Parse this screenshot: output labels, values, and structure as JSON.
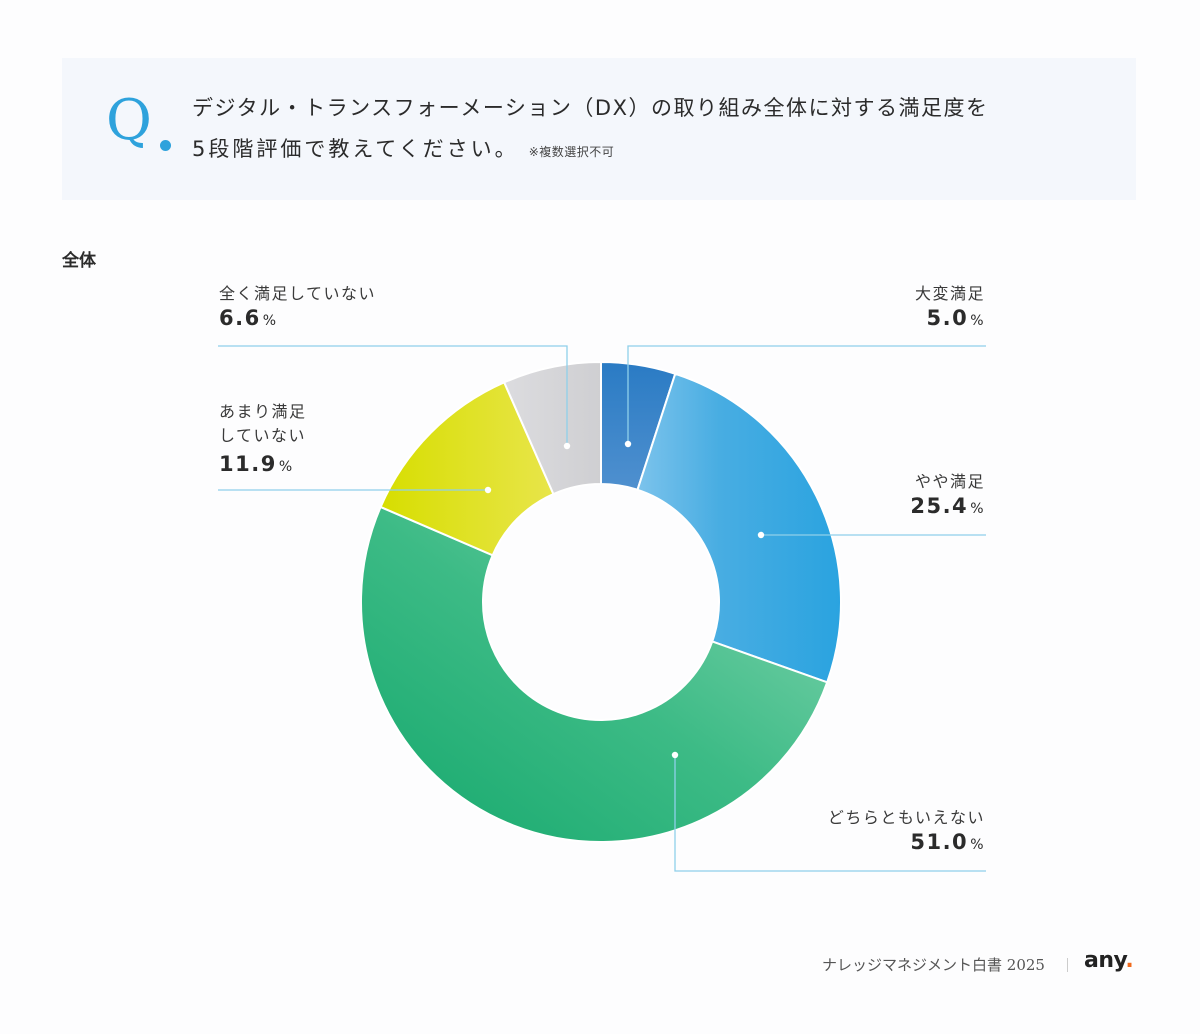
{
  "question": {
    "mark": "Q",
    "line1": "デジタル・トランスフォーメーション（DX）の取り組み全体に対する満足度を",
    "line2": "5段階評価で教えてください。",
    "note": "※複数選択不可"
  },
  "section_label": "全体",
  "labels": {
    "very_satisfied": {
      "name": "大変満足",
      "value": "5.0",
      "unit": "%"
    },
    "somewhat_satisfied": {
      "name": "やや満足",
      "value": "25.4",
      "unit": "%"
    },
    "neutral": {
      "name": "どちらともいえない",
      "value": "51.0",
      "unit": "%"
    },
    "not_very_satisfied": {
      "name_line1": "あまり満足",
      "name_line2": "していない",
      "value": "11.9",
      "unit": "%"
    },
    "not_at_all": {
      "name": "全く満足していない",
      "value": "6.6",
      "unit": "%"
    }
  },
  "footer": {
    "publication": "ナレッジマネジメント白書 2025",
    "logo": "any",
    "logo_dot": "."
  },
  "colors": {
    "accent": "#2ea2dc",
    "very_satisfied": "#2f7fc6",
    "somewhat_satisfied": "#36a6df",
    "neutral": "#2fb27a",
    "not_very_satisfied": "#dfe01a",
    "not_at_all": "#d5d5d8",
    "leader_line": "#8fd0ea",
    "logo_dot": "#f06a1d"
  },
  "chart_data": {
    "type": "pie",
    "subtype": "donut",
    "title": "デジタル・トランスフォーメーション（DX）の取り組み全体に対する満足度を5段階評価で教えてください。",
    "subtitle": "全体",
    "categories": [
      "大変満足",
      "やや満足",
      "どちらともいえない",
      "あまり満足していない",
      "全く満足していない"
    ],
    "values": [
      5.0,
      25.4,
      51.0,
      11.9,
      6.6
    ],
    "unit": "%",
    "start_angle": "12 o'clock, clockwise",
    "legend_position": "callout labels"
  }
}
